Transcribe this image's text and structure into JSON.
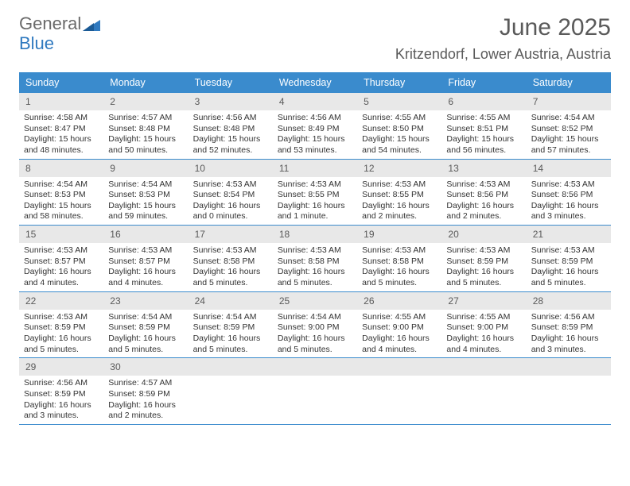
{
  "brand": {
    "word1": "General",
    "word2": "Blue"
  },
  "title": "June 2025",
  "location": "Kritzendorf, Lower Austria, Austria",
  "colors": {
    "header_bg": "#3a8bcd",
    "border": "#3a8bcd",
    "daynum_bg": "#e8e8e8"
  },
  "dow": [
    "Sunday",
    "Monday",
    "Tuesday",
    "Wednesday",
    "Thursday",
    "Friday",
    "Saturday"
  ],
  "weeks": [
    [
      {
        "n": "1",
        "sr": "Sunrise: 4:58 AM",
        "ss": "Sunset: 8:47 PM",
        "d1": "Daylight: 15 hours",
        "d2": "and 48 minutes."
      },
      {
        "n": "2",
        "sr": "Sunrise: 4:57 AM",
        "ss": "Sunset: 8:48 PM",
        "d1": "Daylight: 15 hours",
        "d2": "and 50 minutes."
      },
      {
        "n": "3",
        "sr": "Sunrise: 4:56 AM",
        "ss": "Sunset: 8:48 PM",
        "d1": "Daylight: 15 hours",
        "d2": "and 52 minutes."
      },
      {
        "n": "4",
        "sr": "Sunrise: 4:56 AM",
        "ss": "Sunset: 8:49 PM",
        "d1": "Daylight: 15 hours",
        "d2": "and 53 minutes."
      },
      {
        "n": "5",
        "sr": "Sunrise: 4:55 AM",
        "ss": "Sunset: 8:50 PM",
        "d1": "Daylight: 15 hours",
        "d2": "and 54 minutes."
      },
      {
        "n": "6",
        "sr": "Sunrise: 4:55 AM",
        "ss": "Sunset: 8:51 PM",
        "d1": "Daylight: 15 hours",
        "d2": "and 56 minutes."
      },
      {
        "n": "7",
        "sr": "Sunrise: 4:54 AM",
        "ss": "Sunset: 8:52 PM",
        "d1": "Daylight: 15 hours",
        "d2": "and 57 minutes."
      }
    ],
    [
      {
        "n": "8",
        "sr": "Sunrise: 4:54 AM",
        "ss": "Sunset: 8:53 PM",
        "d1": "Daylight: 15 hours",
        "d2": "and 58 minutes."
      },
      {
        "n": "9",
        "sr": "Sunrise: 4:54 AM",
        "ss": "Sunset: 8:53 PM",
        "d1": "Daylight: 15 hours",
        "d2": "and 59 minutes."
      },
      {
        "n": "10",
        "sr": "Sunrise: 4:53 AM",
        "ss": "Sunset: 8:54 PM",
        "d1": "Daylight: 16 hours",
        "d2": "and 0 minutes."
      },
      {
        "n": "11",
        "sr": "Sunrise: 4:53 AM",
        "ss": "Sunset: 8:55 PM",
        "d1": "Daylight: 16 hours",
        "d2": "and 1 minute."
      },
      {
        "n": "12",
        "sr": "Sunrise: 4:53 AM",
        "ss": "Sunset: 8:55 PM",
        "d1": "Daylight: 16 hours",
        "d2": "and 2 minutes."
      },
      {
        "n": "13",
        "sr": "Sunrise: 4:53 AM",
        "ss": "Sunset: 8:56 PM",
        "d1": "Daylight: 16 hours",
        "d2": "and 2 minutes."
      },
      {
        "n": "14",
        "sr": "Sunrise: 4:53 AM",
        "ss": "Sunset: 8:56 PM",
        "d1": "Daylight: 16 hours",
        "d2": "and 3 minutes."
      }
    ],
    [
      {
        "n": "15",
        "sr": "Sunrise: 4:53 AM",
        "ss": "Sunset: 8:57 PM",
        "d1": "Daylight: 16 hours",
        "d2": "and 4 minutes."
      },
      {
        "n": "16",
        "sr": "Sunrise: 4:53 AM",
        "ss": "Sunset: 8:57 PM",
        "d1": "Daylight: 16 hours",
        "d2": "and 4 minutes."
      },
      {
        "n": "17",
        "sr": "Sunrise: 4:53 AM",
        "ss": "Sunset: 8:58 PM",
        "d1": "Daylight: 16 hours",
        "d2": "and 5 minutes."
      },
      {
        "n": "18",
        "sr": "Sunrise: 4:53 AM",
        "ss": "Sunset: 8:58 PM",
        "d1": "Daylight: 16 hours",
        "d2": "and 5 minutes."
      },
      {
        "n": "19",
        "sr": "Sunrise: 4:53 AM",
        "ss": "Sunset: 8:58 PM",
        "d1": "Daylight: 16 hours",
        "d2": "and 5 minutes."
      },
      {
        "n": "20",
        "sr": "Sunrise: 4:53 AM",
        "ss": "Sunset: 8:59 PM",
        "d1": "Daylight: 16 hours",
        "d2": "and 5 minutes."
      },
      {
        "n": "21",
        "sr": "Sunrise: 4:53 AM",
        "ss": "Sunset: 8:59 PM",
        "d1": "Daylight: 16 hours",
        "d2": "and 5 minutes."
      }
    ],
    [
      {
        "n": "22",
        "sr": "Sunrise: 4:53 AM",
        "ss": "Sunset: 8:59 PM",
        "d1": "Daylight: 16 hours",
        "d2": "and 5 minutes."
      },
      {
        "n": "23",
        "sr": "Sunrise: 4:54 AM",
        "ss": "Sunset: 8:59 PM",
        "d1": "Daylight: 16 hours",
        "d2": "and 5 minutes."
      },
      {
        "n": "24",
        "sr": "Sunrise: 4:54 AM",
        "ss": "Sunset: 8:59 PM",
        "d1": "Daylight: 16 hours",
        "d2": "and 5 minutes."
      },
      {
        "n": "25",
        "sr": "Sunrise: 4:54 AM",
        "ss": "Sunset: 9:00 PM",
        "d1": "Daylight: 16 hours",
        "d2": "and 5 minutes."
      },
      {
        "n": "26",
        "sr": "Sunrise: 4:55 AM",
        "ss": "Sunset: 9:00 PM",
        "d1": "Daylight: 16 hours",
        "d2": "and 4 minutes."
      },
      {
        "n": "27",
        "sr": "Sunrise: 4:55 AM",
        "ss": "Sunset: 9:00 PM",
        "d1": "Daylight: 16 hours",
        "d2": "and 4 minutes."
      },
      {
        "n": "28",
        "sr": "Sunrise: 4:56 AM",
        "ss": "Sunset: 8:59 PM",
        "d1": "Daylight: 16 hours",
        "d2": "and 3 minutes."
      }
    ],
    [
      {
        "n": "29",
        "sr": "Sunrise: 4:56 AM",
        "ss": "Sunset: 8:59 PM",
        "d1": "Daylight: 16 hours",
        "d2": "and 3 minutes."
      },
      {
        "n": "30",
        "sr": "Sunrise: 4:57 AM",
        "ss": "Sunset: 8:59 PM",
        "d1": "Daylight: 16 hours",
        "d2": "and 2 minutes."
      },
      {
        "empty": true
      },
      {
        "empty": true
      },
      {
        "empty": true
      },
      {
        "empty": true
      },
      {
        "empty": true
      }
    ]
  ]
}
